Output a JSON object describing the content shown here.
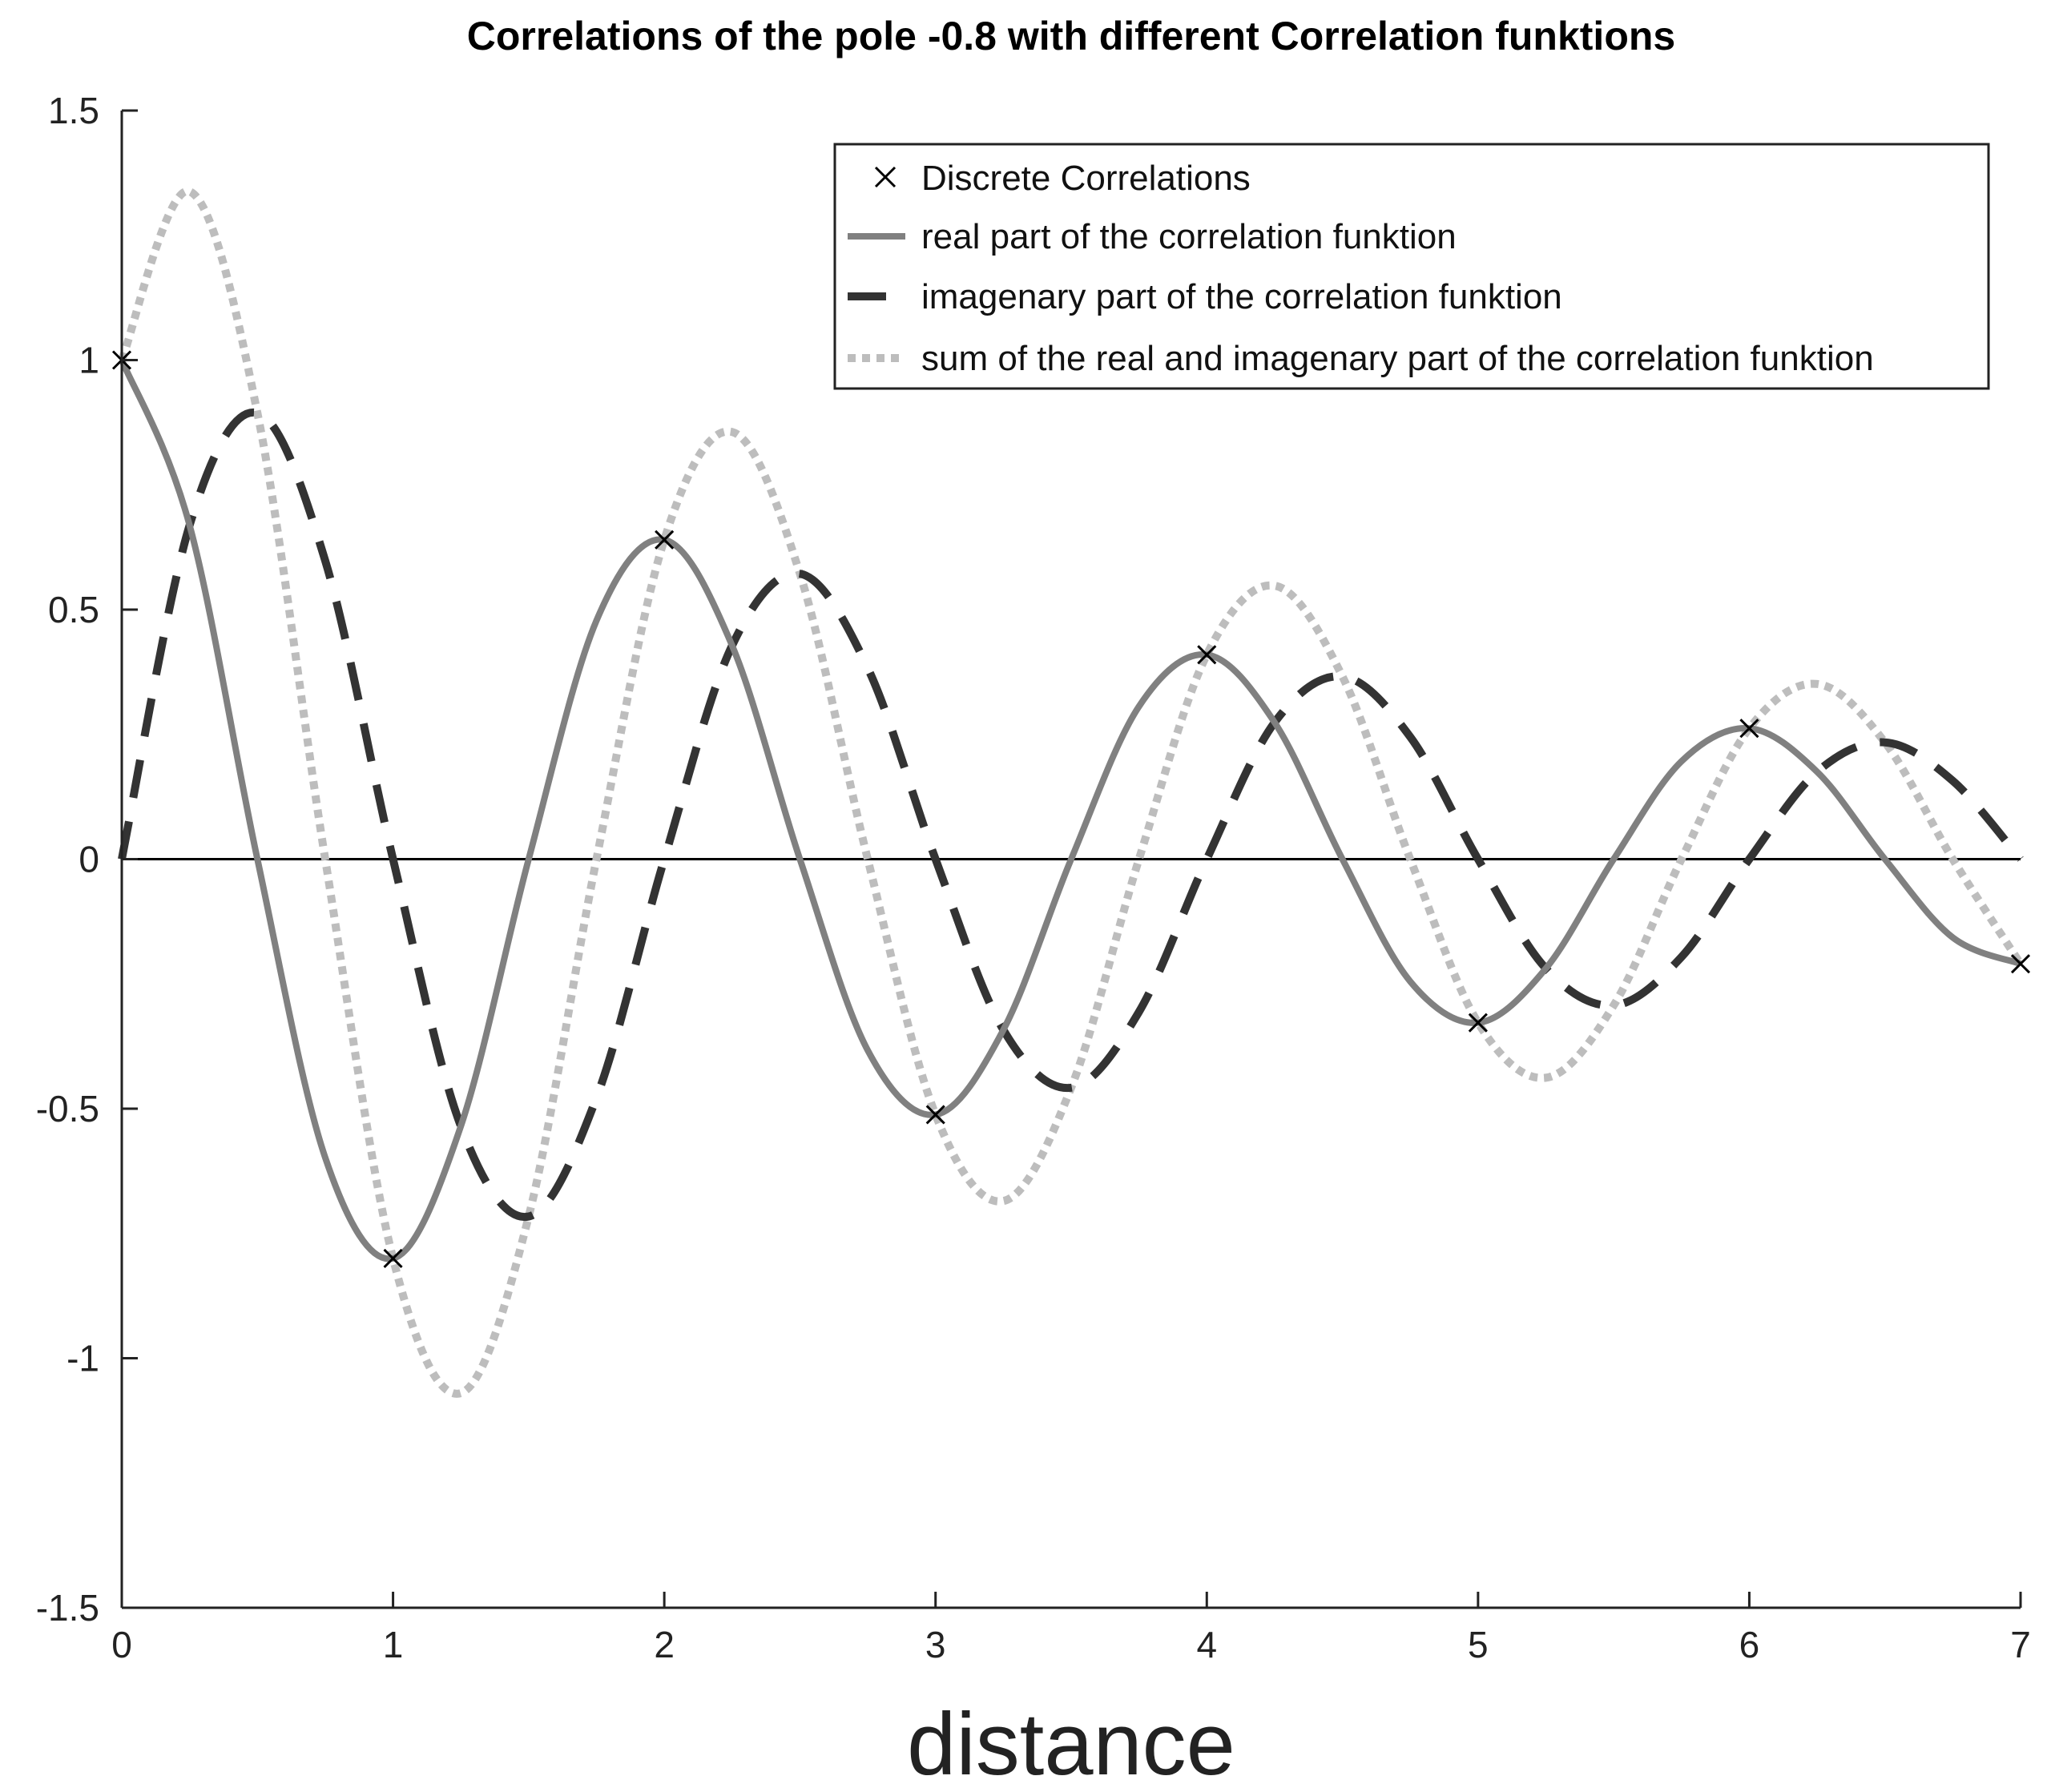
{
  "chart_data": {
    "type": "line",
    "title": "Correlations of the pole -0.8 with different Correlation funktions",
    "xlabel": "distance",
    "ylabel": "",
    "xlim": [
      0,
      7
    ],
    "ylim": [
      -1.5,
      1.5
    ],
    "xticks": [
      "0",
      "1",
      "2",
      "3",
      "4",
      "5",
      "6",
      "7"
    ],
    "xtick_values": [
      0,
      1,
      2,
      3,
      4,
      5,
      6,
      7
    ],
    "yticks": [
      "1.5",
      "1",
      "0.5",
      "0",
      "-0.5",
      "-1",
      "-1.5"
    ],
    "ytick_values": [
      1.5,
      1,
      0.5,
      0,
      -0.5,
      -1,
      -1.5
    ],
    "grid": false,
    "zero_line": true,
    "legend_position": "top-right",
    "discrete": {
      "name": "Discrete Correlations",
      "marker": "x",
      "color": "#000000",
      "x": [
        0,
        1,
        2,
        3,
        4,
        5,
        6,
        7
      ],
      "y": [
        1,
        -0.8,
        0.64,
        -0.512,
        0.4096,
        -0.32768,
        0.262144,
        -0.2097152
      ]
    },
    "series": [
      {
        "name": "real part of the correlation funktion",
        "color": "#808080",
        "dash": "solid",
        "x": [
          0,
          0.25,
          0.5,
          0.75,
          1,
          1.25,
          1.5,
          1.75,
          2,
          2.25,
          2.5,
          2.75,
          3,
          3.25,
          3.5,
          3.75,
          4,
          4.25,
          4.5,
          4.75,
          5,
          5.25,
          5.5,
          5.75,
          6,
          6.25,
          6.5,
          6.75,
          7
        ],
        "y": [
          1,
          0.669,
          0,
          -0.598,
          -0.8,
          -0.535,
          0,
          0.478,
          0.64,
          0.428,
          0,
          -0.383,
          -0.512,
          -0.342,
          0,
          0.306,
          0.4096,
          0.274,
          0,
          -0.245,
          -0.3277,
          -0.219,
          0,
          0.196,
          0.2621,
          0.175,
          0,
          -0.157,
          -0.2097
        ]
      },
      {
        "name": "imagenary part of the correlation funktion",
        "color": "#333333",
        "dash": "dashed",
        "x": [
          0,
          0.25,
          0.5,
          0.75,
          1,
          1.25,
          1.5,
          1.75,
          2,
          2.25,
          2.5,
          2.75,
          3,
          3.25,
          3.5,
          3.75,
          4,
          4.25,
          4.5,
          4.75,
          5,
          5.25,
          5.5,
          5.75,
          6,
          6.25,
          6.5,
          6.75,
          7
        ],
        "y": [
          0,
          0.669,
          0.894,
          0.598,
          0,
          -0.535,
          -0.716,
          -0.478,
          0,
          0.428,
          0.572,
          0.383,
          0,
          -0.342,
          -0.458,
          -0.306,
          0,
          0.274,
          0.366,
          0.245,
          0,
          -0.219,
          -0.293,
          -0.196,
          0,
          0.175,
          0.234,
          0.157,
          0
        ]
      },
      {
        "name": "sum of the real and imagenary part of the correlation funktion",
        "color": "#bdbdbd",
        "dash": "dotted",
        "x": [
          0,
          0.25,
          0.5,
          0.75,
          1,
          1.25,
          1.5,
          1.75,
          2,
          2.25,
          2.5,
          2.75,
          3,
          3.25,
          3.5,
          3.75,
          4,
          4.25,
          4.5,
          4.75,
          5,
          5.25,
          5.5,
          5.75,
          6,
          6.25,
          6.5,
          6.75,
          7
        ],
        "y": [
          1,
          1.338,
          0.894,
          0,
          -0.8,
          -1.07,
          -0.716,
          0,
          0.64,
          0.856,
          0.572,
          0,
          -0.512,
          -0.685,
          -0.458,
          0,
          0.4096,
          0.548,
          0.366,
          0,
          -0.3277,
          -0.438,
          -0.293,
          0,
          0.2621,
          0.351,
          0.234,
          0,
          -0.2097
        ]
      }
    ]
  }
}
